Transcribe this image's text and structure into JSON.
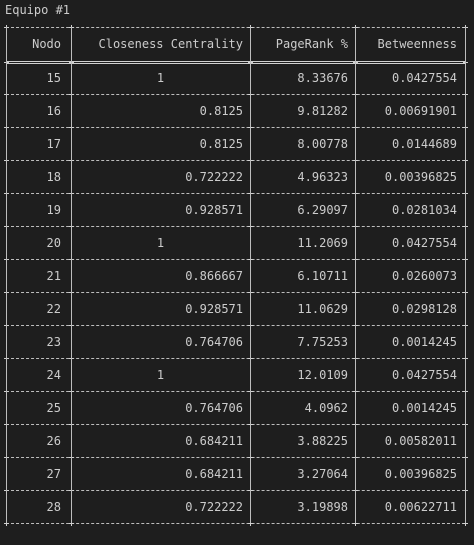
{
  "window": {
    "title": "Equipo #1"
  },
  "table": {
    "headers": [
      "Nodo",
      "Closeness Centrality",
      "PageRank %",
      "Betweenness"
    ],
    "rows": [
      [
        "15",
        "1",
        "8.33676",
        "0.0427554"
      ],
      [
        "16",
        "0.8125",
        "9.81282",
        "0.00691901"
      ],
      [
        "17",
        "0.8125",
        "8.00778",
        "0.0144689"
      ],
      [
        "18",
        "0.722222",
        "4.96323",
        "0.00396825"
      ],
      [
        "19",
        "0.928571",
        "6.29097",
        "0.0281034"
      ],
      [
        "20",
        "1",
        "11.2069",
        "0.0427554"
      ],
      [
        "21",
        "0.866667",
        "6.10711",
        "0.0260073"
      ],
      [
        "22",
        "0.928571",
        "11.0629",
        "0.0298128"
      ],
      [
        "23",
        "0.764706",
        "7.75253",
        "0.0014245"
      ],
      [
        "24",
        "1",
        "12.0109",
        "0.0427554"
      ],
      [
        "25",
        "0.764706",
        "4.0962",
        "0.0014245"
      ],
      [
        "26",
        "0.684211",
        "3.88225",
        "0.00582011"
      ],
      [
        "27",
        "0.684211",
        "3.27064",
        "0.00396825"
      ],
      [
        "28",
        "0.722222",
        "3.19898",
        "0.00622711"
      ]
    ]
  },
  "colors": {
    "background": "#1e1e1e",
    "text": "#cccccc",
    "border": "#bdbdbd"
  }
}
